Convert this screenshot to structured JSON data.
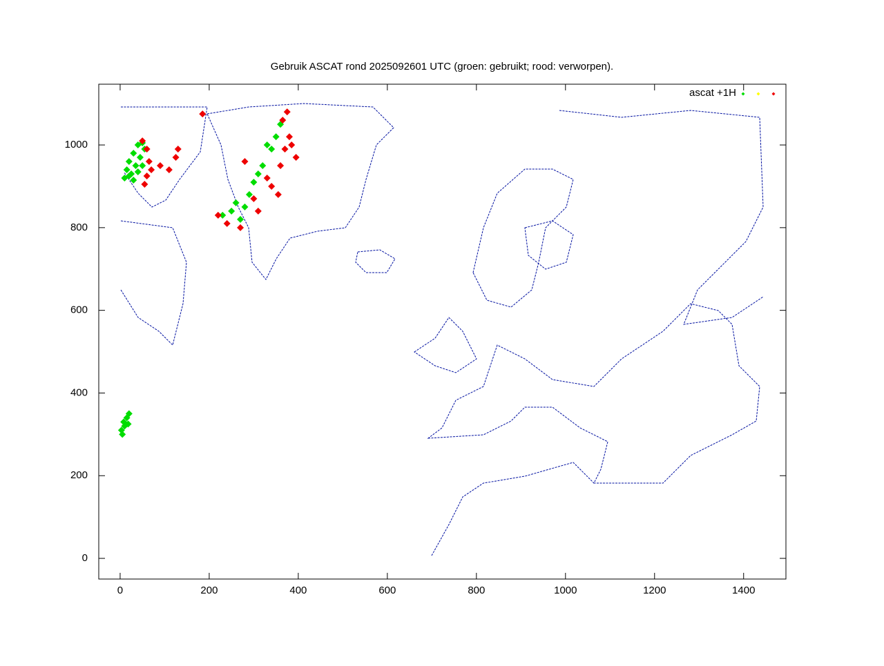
{
  "chart_data": {
    "type": "scatter",
    "title": "Gebruik ASCAT rond 2025092601 UTC (groen: gebruikt; rood: verworpen).",
    "xlim": [
      -48,
      1495
    ],
    "ylim": [
      -50,
      1147
    ],
    "xticks": [
      0,
      200,
      400,
      600,
      800,
      1000,
      1200,
      1400
    ],
    "yticks": [
      0,
      200,
      400,
      600,
      800,
      1000
    ],
    "legend": "top-right",
    "series": [
      {
        "name": "ascat +1H",
        "color": "#00dd00",
        "x": [
          10,
          15,
          20,
          30,
          40,
          50,
          25,
          35,
          45,
          55,
          30,
          40,
          50,
          20,
          5,
          10,
          15,
          20,
          8,
          18,
          3,
          230,
          250,
          270,
          260,
          290,
          300,
          320,
          340,
          350,
          360,
          310,
          280,
          330
        ],
        "values": [
          920,
          940,
          960,
          980,
          1000,
          1005,
          930,
          950,
          970,
          990,
          915,
          935,
          950,
          925,
          300,
          320,
          340,
          350,
          330,
          325,
          310,
          830,
          840,
          820,
          860,
          880,
          910,
          950,
          990,
          1020,
          1050,
          930,
          850,
          1000
        ]
      },
      {
        "color": "#ffff00",
        "x": [],
        "values": []
      },
      {
        "color": "#ee0000",
        "x": [
          50,
          60,
          65,
          60,
          55,
          70,
          90,
          110,
          130,
          125,
          185,
          220,
          240,
          270,
          300,
          330,
          340,
          360,
          370,
          380,
          385,
          395,
          355,
          365,
          375,
          310,
          280
        ],
        "values": [
          1010,
          990,
          960,
          925,
          905,
          940,
          950,
          940,
          990,
          970,
          1075,
          830,
          810,
          800,
          870,
          920,
          900,
          950,
          990,
          1020,
          1000,
          970,
          880,
          1060,
          1080,
          840,
          960
        ]
      }
    ]
  }
}
